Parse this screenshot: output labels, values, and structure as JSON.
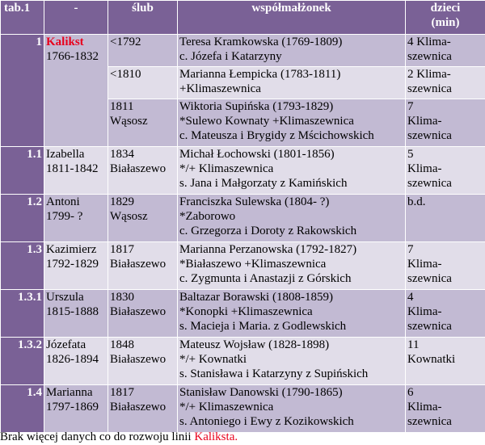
{
  "headers": {
    "tab": "tab.1",
    "dash": "-",
    "slub": "ślub",
    "spouse": "współmałżonek",
    "children_1": "dzieci",
    "children_2": "(min)"
  },
  "rows": {
    "r1a": {
      "idx": "1",
      "name": "Kalikst",
      "years": "1766-1832",
      "slub": [
        "<1792"
      ],
      "spouse": [
        "Teresa Kramkowska (1769-1809)",
        "c. Józefa i Katarzyny"
      ],
      "children": [
        "4 Klima-",
        "szewnica"
      ]
    },
    "r1b": {
      "slub": [
        "<1810"
      ],
      "spouse": [
        "Marianna Łempicka (1783-1811)",
        "+Klimaszewnica"
      ],
      "children": [
        "2 Klima-",
        "szewnica"
      ]
    },
    "r1c": {
      "slub": [
        "1811",
        "Wąsosz"
      ],
      "spouse": [
        "Wiktoria Supińska (1793-1829)",
        "*Sulewo Kownaty +Klimaszewnica",
        "c. Mateusza i Brygidy z Mścichowskich"
      ],
      "children": [
        "7",
        "Klima-",
        "szewnica"
      ]
    },
    "r11": {
      "idx": "1.1",
      "person": [
        "Izabella",
        "1811-1842"
      ],
      "slub": [
        "1834",
        "Białaszewo"
      ],
      "spouse": [
        "Michał Łochowski (1801-1856)",
        "*/+ Klimaszewnica",
        "s. Jana i Małgorzaty z Kamińskich"
      ],
      "children": [
        "5",
        "Klima-",
        "szewnica"
      ]
    },
    "r12": {
      "idx": "1.2",
      "person": [
        "Antoni",
        "1799- ?"
      ],
      "slub": [
        "1829",
        "Wąsosz"
      ],
      "spouse": [
        "Franciszka Sulewska (1804- ?)",
        "*Zaborowo",
        "c. Grzegorza i Doroty z Rakowskich"
      ],
      "children": [
        "b.d."
      ]
    },
    "r13": {
      "idx": "1.3",
      "person": [
        "Kazimierz",
        "1792-1829"
      ],
      "slub": [
        "1817",
        "Białaszewo"
      ],
      "spouse": [
        "Marianna Perzanowska (1792-1827)",
        "*Białaszewo +Klimaszewnica",
        "c. Zygmunta i Anastazji z Górskich"
      ],
      "children": [
        "7",
        "Klima-",
        "szewnica"
      ]
    },
    "r131": {
      "idx": "1.3.1",
      "person": [
        "Urszula",
        "1815-1888"
      ],
      "slub": [
        "1830",
        "Białaszewo"
      ],
      "spouse": [
        "Baltazar Borawski (1808-1859)",
        "*Konopki +Klimaszewnica",
        "s. Macieja i Maria. z Godlewskich"
      ],
      "children": [
        "4",
        "Klima-",
        "szewnica"
      ]
    },
    "r132": {
      "idx": "1.3.2",
      "person": [
        "Józefata",
        "1826-1894"
      ],
      "slub": [
        "1848",
        "Białaszewo"
      ],
      "spouse": [
        "Mateusz Wojsław (1828-1898)",
        "*/+ Kownatki",
        "s. Stanisława i Katarzyny z Supińskich"
      ],
      "children": [
        "11",
        "Kownatki"
      ]
    },
    "r14": {
      "idx": "1.4",
      "person": [
        "Marianna",
        "1797-1869"
      ],
      "slub": [
        "1817",
        "Białaszewo"
      ],
      "spouse": [
        "Stanisław Danowski (1790-1865)",
        "*/+ Klimaszewnica",
        "s. Antoniego i Ewy z Kozikowskich"
      ],
      "children": [
        "6",
        "Klima-",
        "szewnica"
      ]
    }
  },
  "footer": {
    "prefix": "Brak więcej danych co do rozwoju linii ",
    "highlight": "Kaliksta."
  },
  "colors": {
    "header_bg": "#7a6196",
    "row_dark": "#c2bad3",
    "row_light": "#e1dde9",
    "highlight_red": "#e8001c"
  }
}
